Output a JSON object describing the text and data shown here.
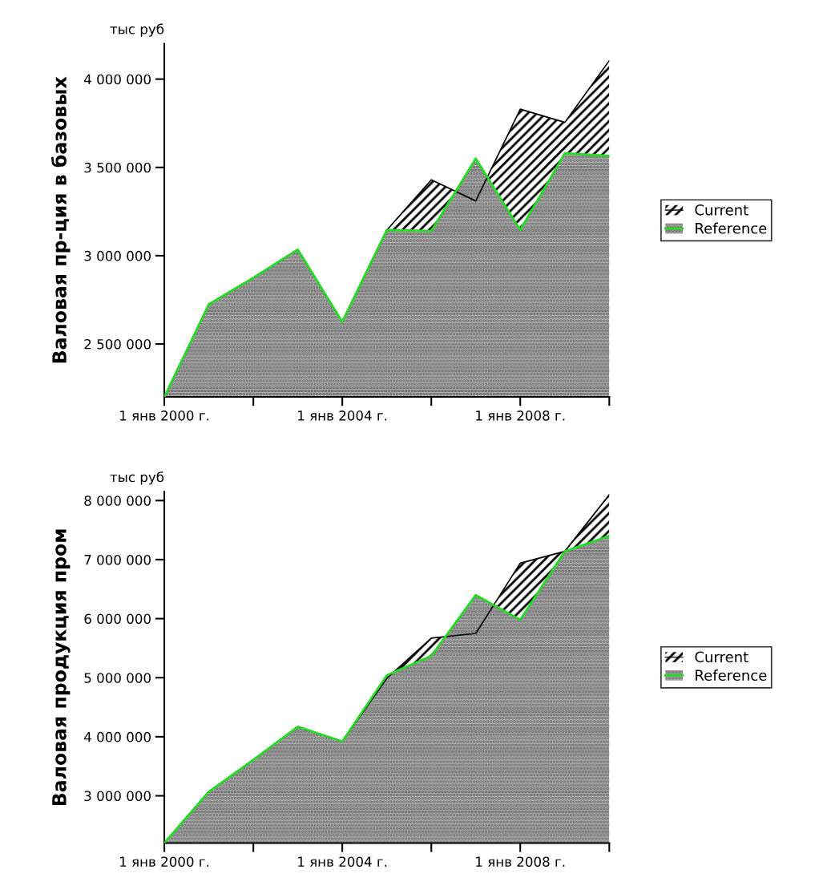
{
  "chart_data": [
    {
      "type": "area",
      "ylabel": "Валовая пр-ция в базовых",
      "annotations": [
        "тыс руб"
      ],
      "legend": "right",
      "grid": false,
      "x": [
        "2000",
        "2001",
        "2002",
        "2003",
        "2004",
        "2005",
        "2006",
        "2007",
        "2008",
        "2009",
        "2010"
      ],
      "xlim": [
        "2000",
        "2010"
      ],
      "xticks": [
        {
          "value": "2000",
          "label": "1 янв 2000 г."
        },
        {
          "value": "2002",
          "label": null
        },
        {
          "value": "2004",
          "label": "1 янв 2004 г."
        },
        {
          "value": "2006",
          "label": null
        },
        {
          "value": "2008",
          "label": "1 янв 2008 г."
        },
        {
          "value": "2010",
          "label": null
        }
      ],
      "ylim": [
        2200000,
        4200000
      ],
      "yticks": [
        {
          "value": 2500000,
          "label": "2 500 000"
        },
        {
          "value": 3000000,
          "label": "3 000 000"
        },
        {
          "value": 3500000,
          "label": "3 500 000"
        },
        {
          "value": 4000000,
          "label": "4 000 000"
        }
      ],
      "series": [
        {
          "name": "Current",
          "color": "#000000",
          "values": [
            2200000,
            2725000,
            2875000,
            3035000,
            2625000,
            3145000,
            3430000,
            3310000,
            3830000,
            3755000,
            4105000
          ]
        },
        {
          "name": "Reference",
          "color": "#22dd22",
          "values": [
            2200000,
            2725000,
            2875000,
            3035000,
            2625000,
            3145000,
            3140000,
            3550000,
            3145000,
            3580000,
            3565000
          ]
        }
      ]
    },
    {
      "type": "area",
      "ylabel": "Валовая продукция пром",
      "annotations": [
        "тыс руб"
      ],
      "legend": "right",
      "grid": false,
      "x": [
        "2000",
        "2001",
        "2002",
        "2003",
        "2004",
        "2005",
        "2006",
        "2007",
        "2008",
        "2009",
        "2010"
      ],
      "xlim": [
        "2000",
        "2010"
      ],
      "xticks": [
        {
          "value": "2000",
          "label": "1 янв 2000 г."
        },
        {
          "value": "2002",
          "label": null
        },
        {
          "value": "2004",
          "label": "1 янв 2004 г."
        },
        {
          "value": "2006",
          "label": null
        },
        {
          "value": "2008",
          "label": "1 янв 2008 г."
        },
        {
          "value": "2010",
          "label": null
        }
      ],
      "ylim": [
        2200000,
        8150000
      ],
      "yticks": [
        {
          "value": 3000000,
          "label": "3 000 000"
        },
        {
          "value": 4000000,
          "label": "4 000 000"
        },
        {
          "value": 5000000,
          "label": "5 000 000"
        },
        {
          "value": 6000000,
          "label": "6 000 000"
        },
        {
          "value": 7000000,
          "label": "7 000 000"
        },
        {
          "value": 8000000,
          "label": "8 000 000"
        }
      ],
      "series": [
        {
          "name": "Current",
          "color": "#000000",
          "values": [
            2200000,
            3070000,
            3610000,
            4170000,
            3920000,
            4990000,
            5670000,
            5750000,
            6940000,
            7140000,
            8100000
          ]
        },
        {
          "name": "Reference",
          "color": "#22dd22",
          "values": [
            2200000,
            3070000,
            3610000,
            4170000,
            3920000,
            5040000,
            5370000,
            6400000,
            5980000,
            7140000,
            7400000
          ]
        }
      ]
    }
  ]
}
